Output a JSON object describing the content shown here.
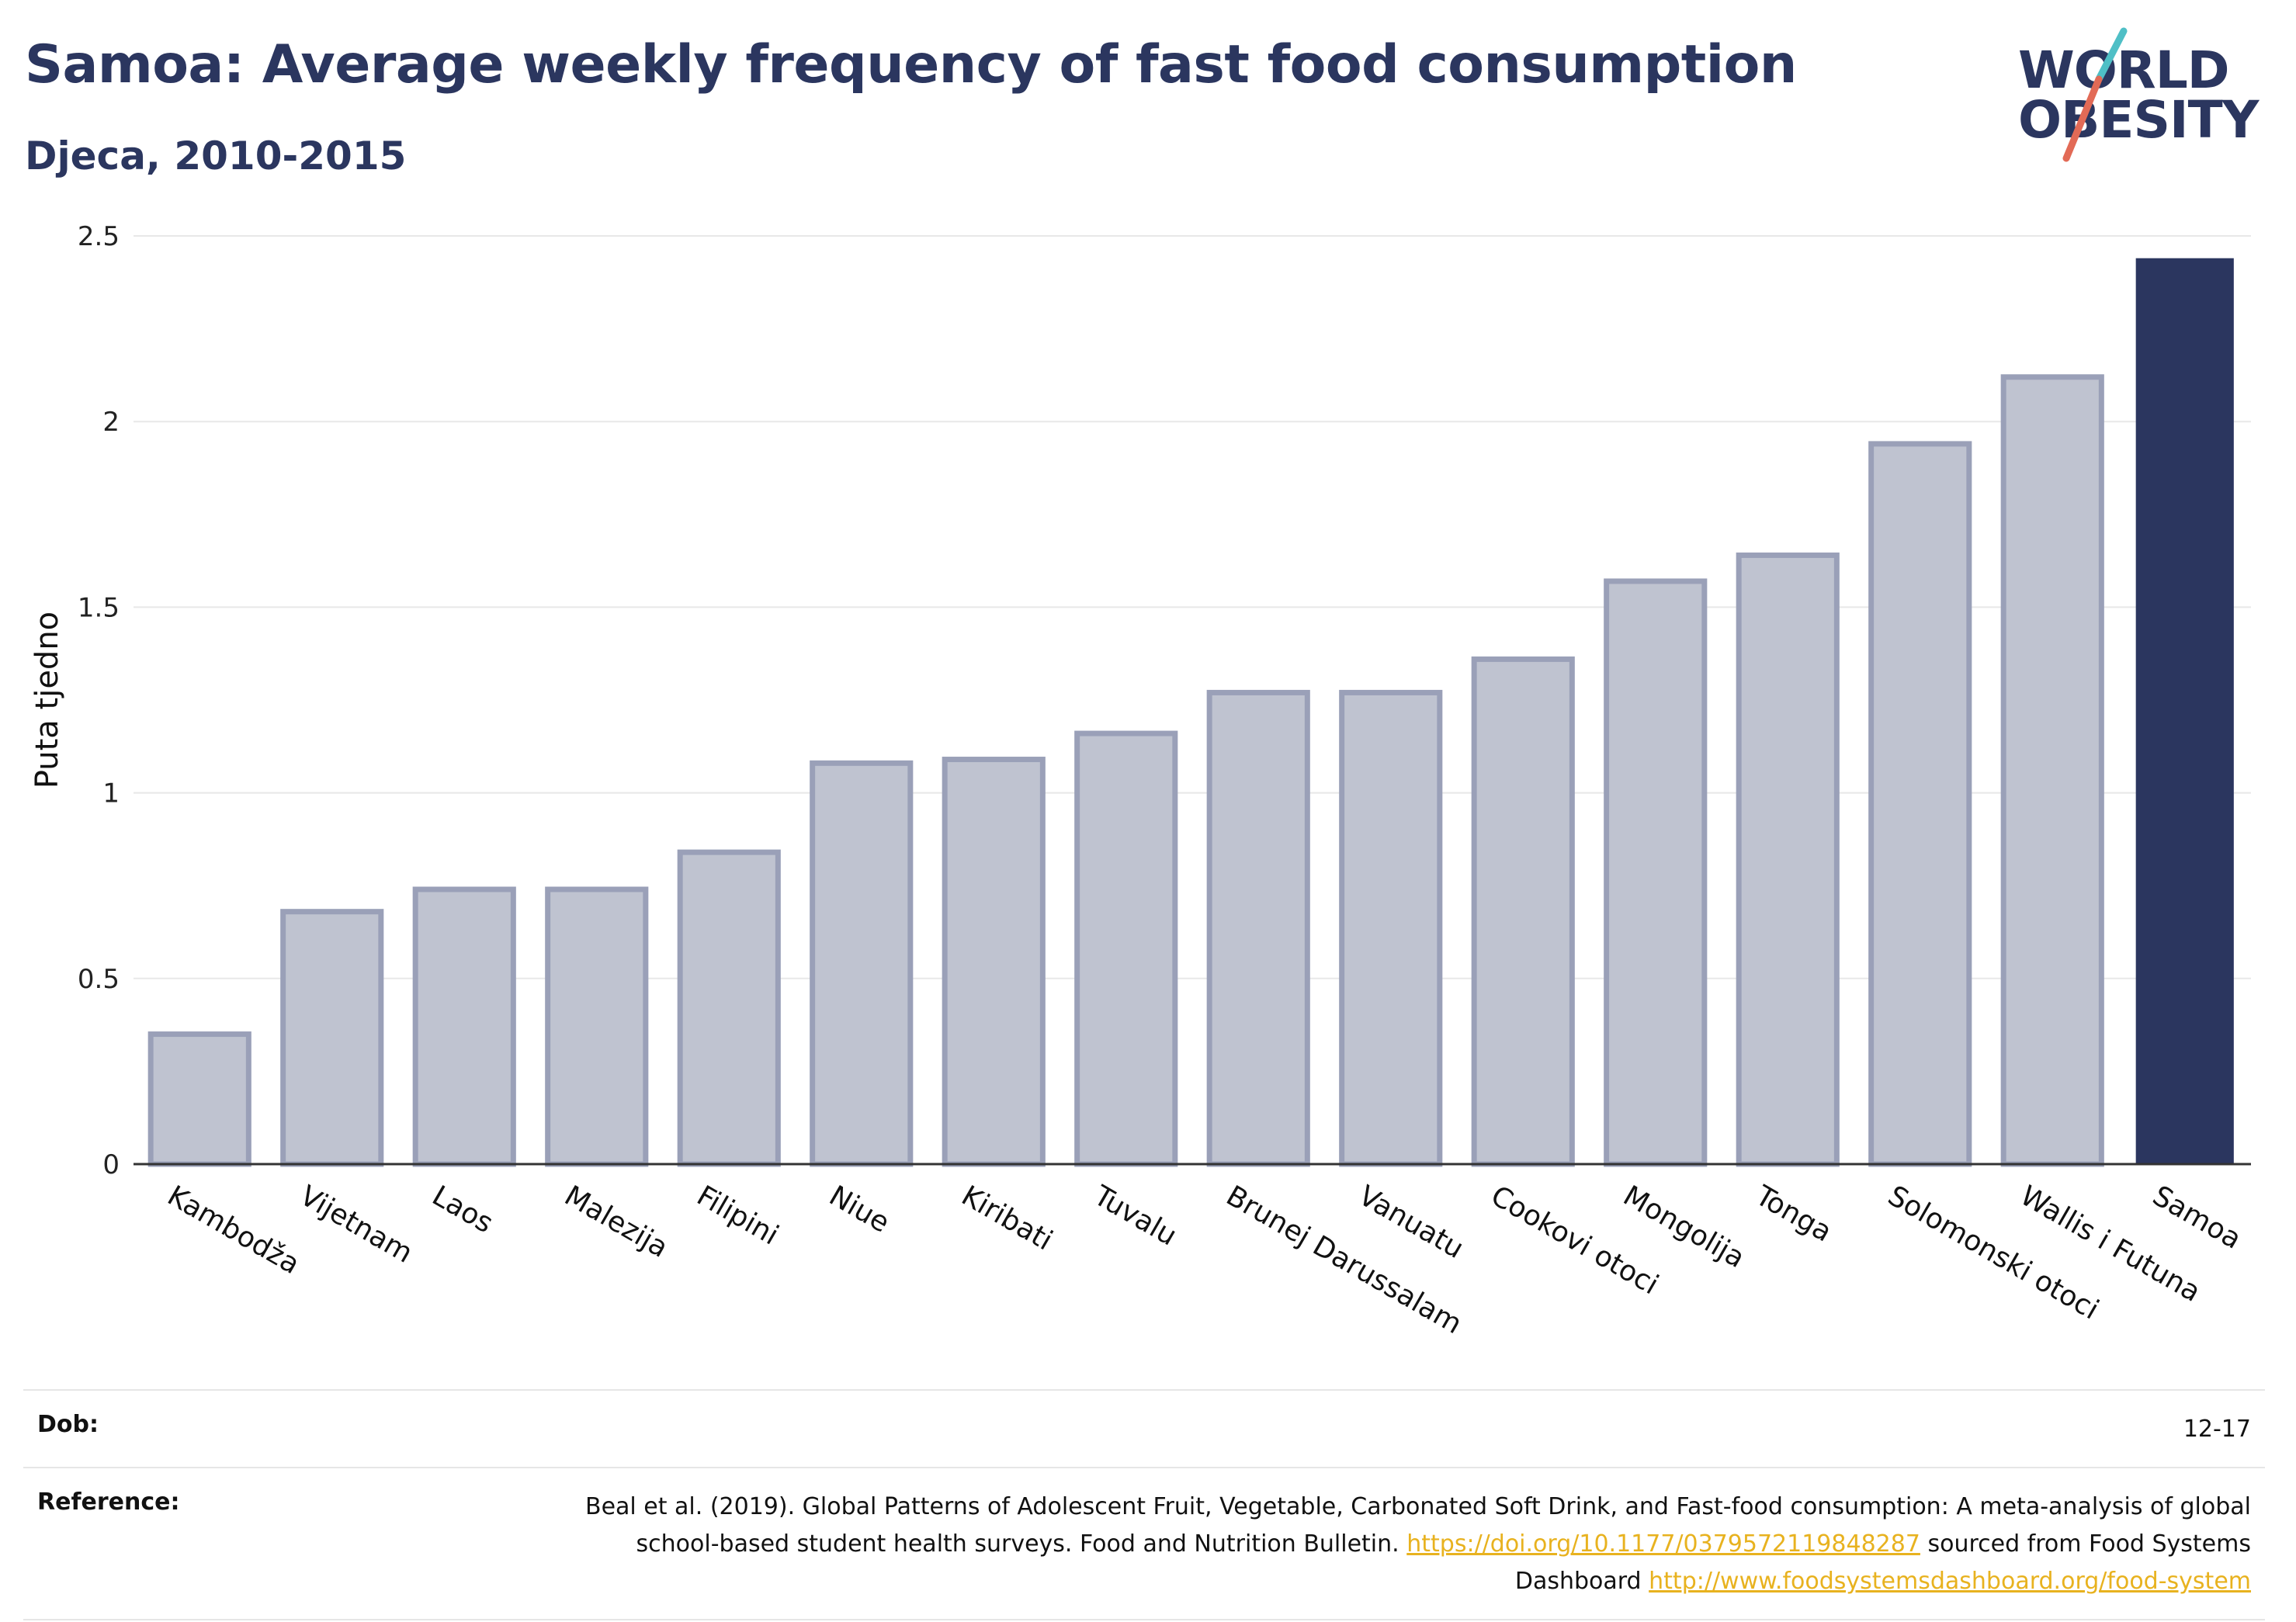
{
  "header": {
    "title": "Samoa: Average weekly frequency of fast food consumption",
    "subtitle": "Djeca, 2010-2015"
  },
  "logo": {
    "line1": "WORLD",
    "line2": "OBESITY",
    "slash_colors": [
      "#4fbfc6",
      "#e26a56"
    ]
  },
  "chart_data": {
    "type": "bar",
    "ylabel": "Puta tjedno",
    "xlabel": "",
    "ylim": [
      0,
      2.5
    ],
    "yticks": [
      0,
      0.5,
      1,
      1.5,
      2,
      2.5
    ],
    "ytick_labels": [
      "0",
      "0.5",
      "1",
      "1.5",
      "2",
      "2.5"
    ],
    "grid": true,
    "categories": [
      "Kambodža",
      "Vijetnam",
      "Laos",
      "Malezija",
      "Filipini",
      "Niue",
      "Kiribati",
      "Tuvalu",
      "Brunej Darussalam",
      "Vanuatu",
      "Cookovi otoci",
      "Mongolija",
      "Tonga",
      "Solomonski otoci",
      "Wallis i Futuna",
      "Samoa"
    ],
    "values": [
      0.35,
      0.68,
      0.74,
      0.74,
      0.84,
      1.08,
      1.09,
      1.16,
      1.27,
      1.27,
      1.36,
      1.57,
      1.64,
      1.94,
      2.12,
      2.44
    ],
    "highlight": "Samoa",
    "colors": {
      "bar": "#bfc3d0",
      "bar_border": "#9aa0b8",
      "highlight": "#2b365f"
    }
  },
  "footer": {
    "age_label": "Dob:",
    "age_value": "12-17",
    "reference_label": "Reference:",
    "reference_text_1": "Beal et al. (2019). Global Patterns of Adolescent Fruit, Vegetable, Carbonated Soft Drink, and Fast-food consumption: A meta-analysis of global school-based student health surveys. Food and Nutrition Bulletin.",
    "reference_link_1": "https://doi.org/10.1177/0379572119848287",
    "reference_text_2": "sourced from Food Systems Dashboard",
    "reference_link_2": "http://www.foodsystemsdashboard.org/food-system"
  }
}
